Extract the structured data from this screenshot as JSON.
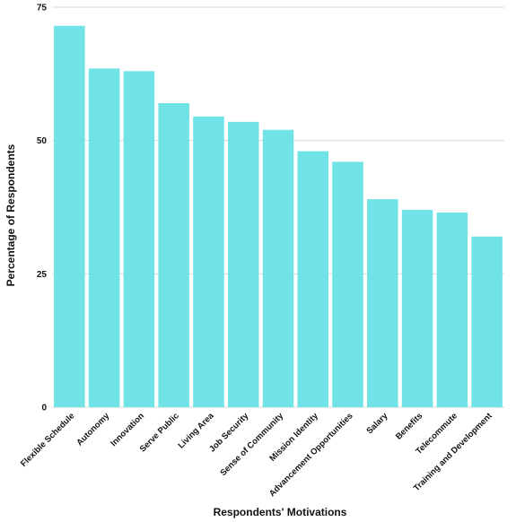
{
  "chart_data": {
    "type": "bar",
    "title": "",
    "xlabel": "Respondents' Motivations",
    "ylabel": "Percentage of Respondents",
    "ylim": [
      0,
      75
    ],
    "yticks": [
      0,
      25,
      50,
      75
    ],
    "grid": true,
    "legend": "none",
    "bar_color": "#6fe3e6",
    "categories": [
      "Flexible Schedule",
      "Autonomy",
      "Innovation",
      "Serve Public",
      "Living Area",
      "Job Security",
      "Sense of Community",
      "Mission Identity",
      "Advancement Opportunities",
      "Salary",
      "Benefits",
      "Telecommute",
      "Training and Development"
    ],
    "values": [
      71.5,
      63.5,
      63,
      57,
      54.5,
      53.5,
      52,
      48,
      46,
      39,
      37,
      36.5,
      32
    ]
  }
}
